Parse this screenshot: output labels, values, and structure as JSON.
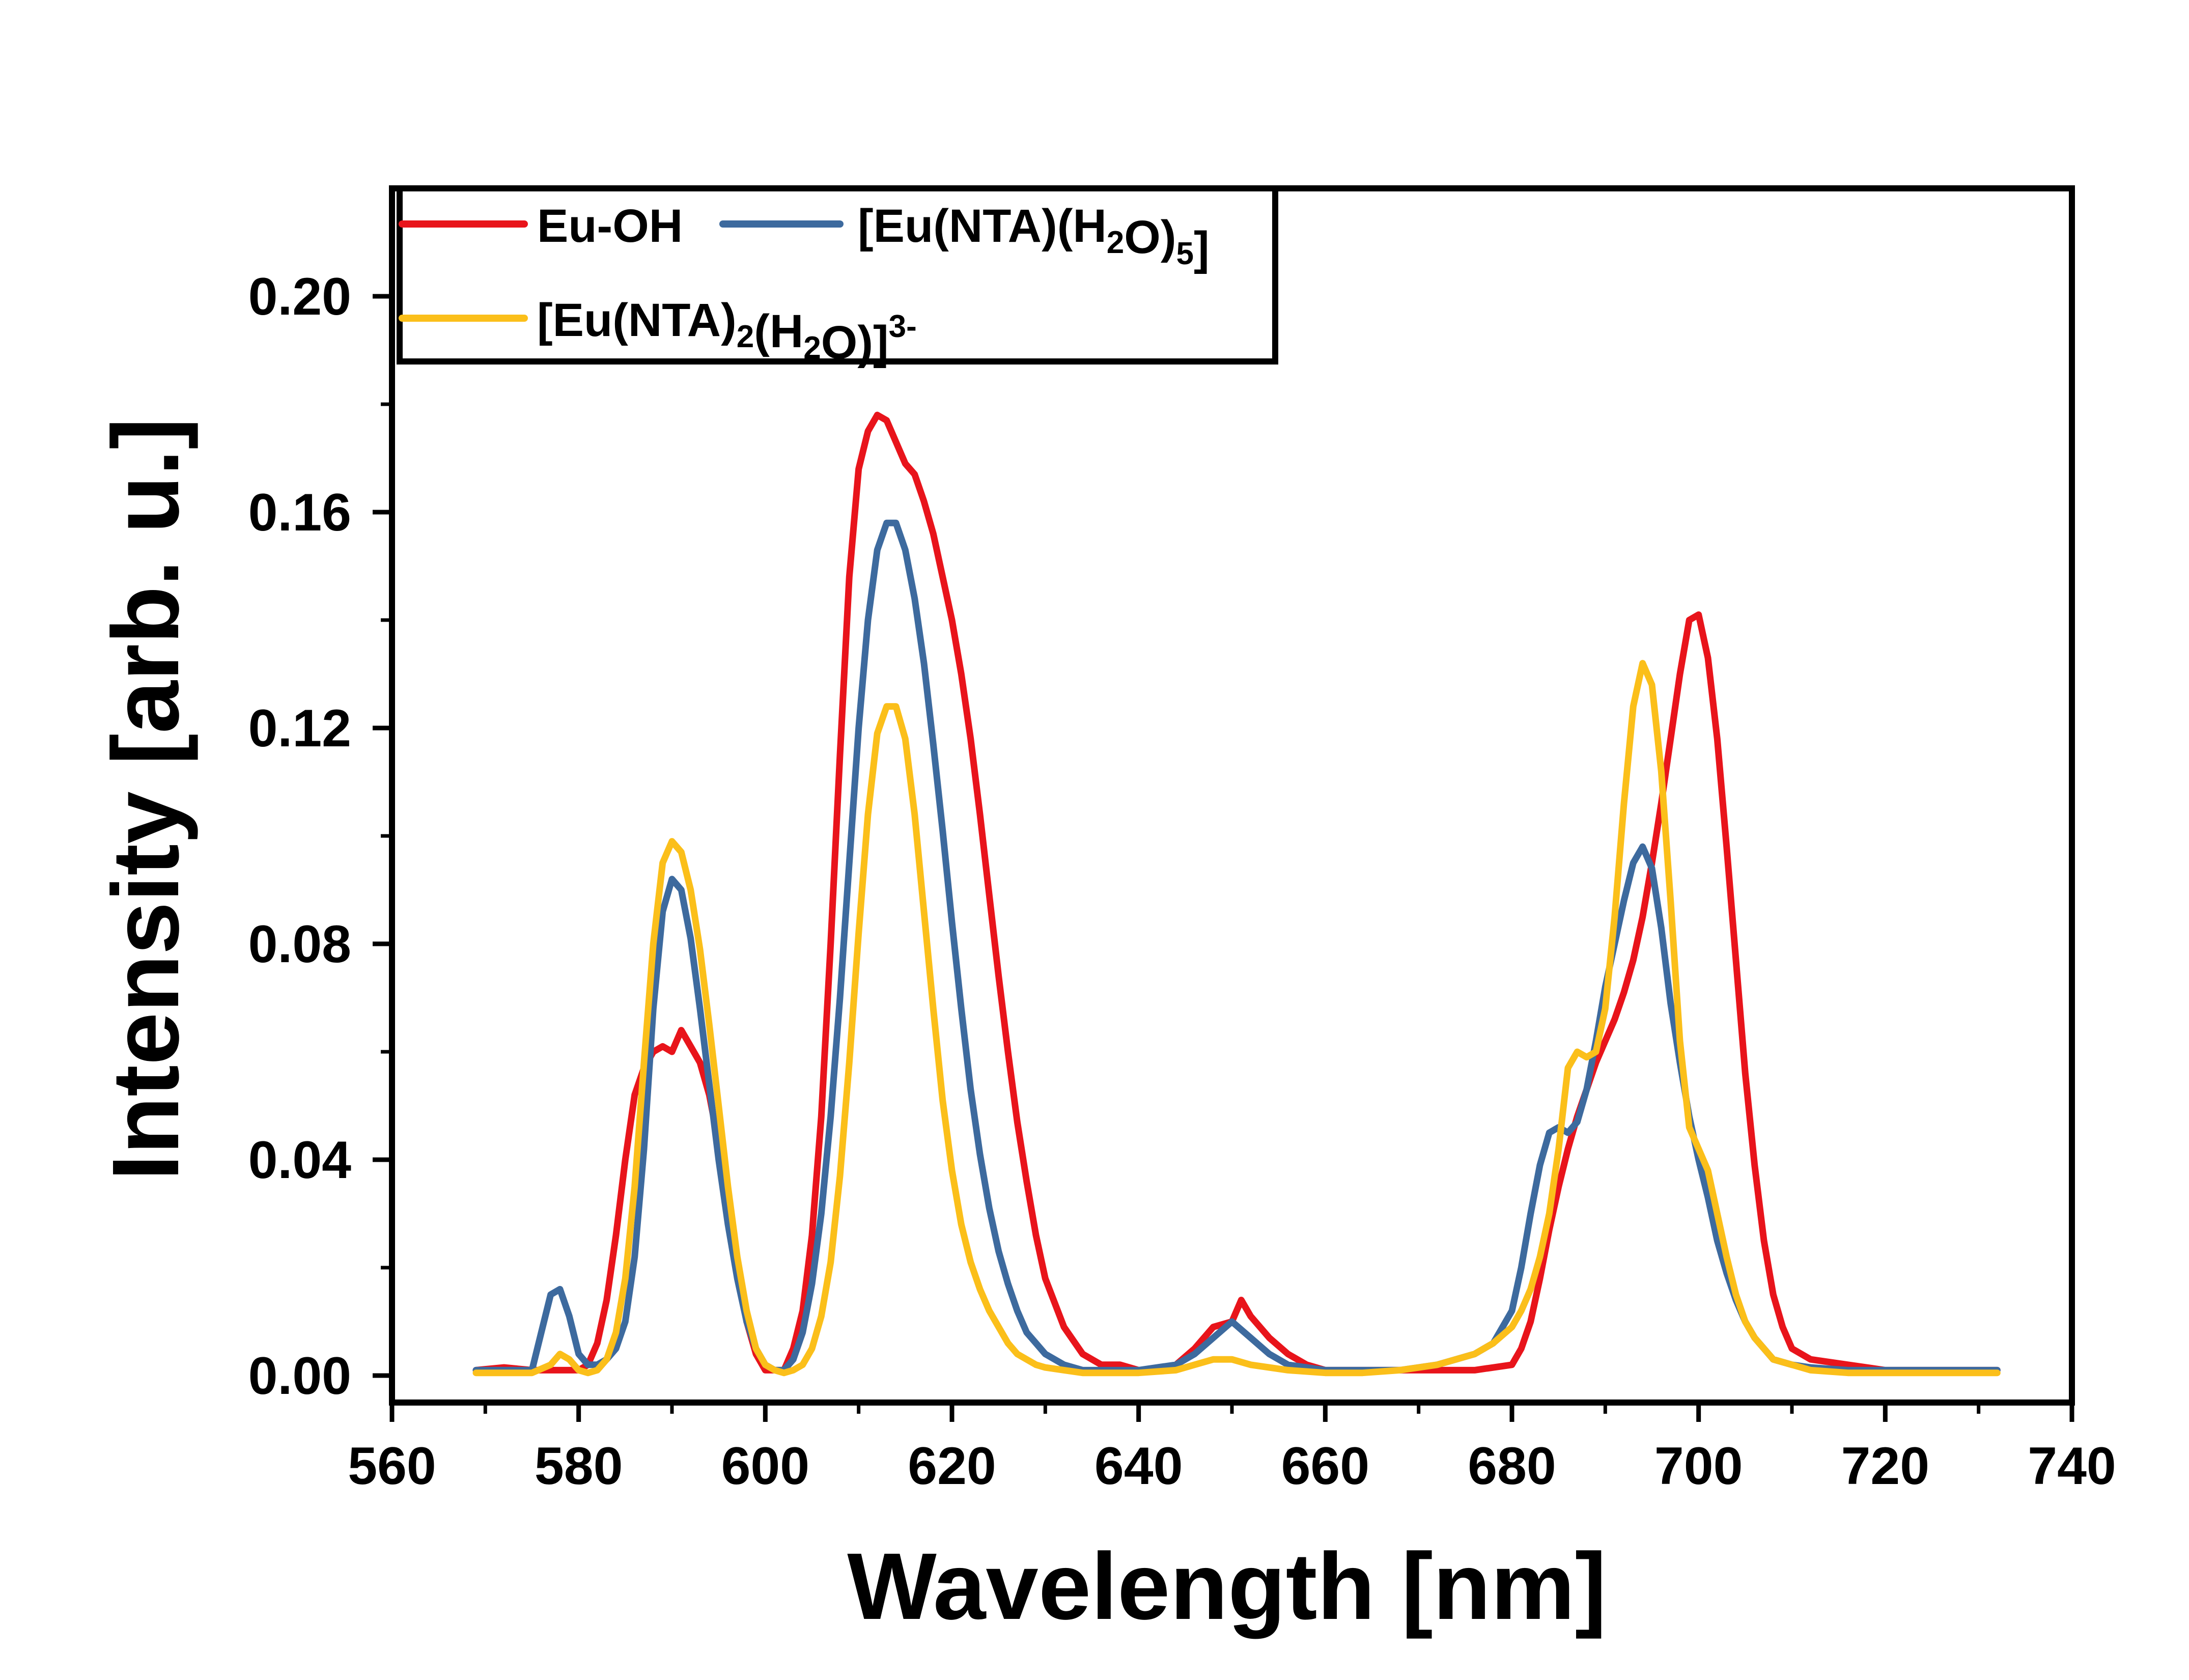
{
  "chart_data": {
    "type": "line",
    "title": "",
    "xlabel": "Wavelength [nm]",
    "ylabel": "Intensity [arb. u.]",
    "xlim": [
      560,
      740
    ],
    "ylim": [
      -0.005,
      0.22
    ],
    "x_ticks": [
      560,
      580,
      600,
      620,
      640,
      660,
      680,
      700,
      720,
      740
    ],
    "x_tick_labels": [
      "560",
      "580",
      "600",
      "620",
      "640",
      "660",
      "680",
      "700",
      "720",
      "740"
    ],
    "y_ticks": [
      0.0,
      0.04,
      0.08,
      0.12,
      0.16,
      0.2
    ],
    "y_tick_labels": [
      "0.00",
      "0.04",
      "0.08",
      "0.12",
      "0.16",
      "0.20"
    ],
    "grid": false,
    "legend_position": "top-left",
    "series": [
      {
        "name": "Eu-OH",
        "legend_parts": [
          {
            "t": "Eu-OH",
            "s": "base"
          }
        ],
        "color": "#e8141b",
        "x": [
          569,
          572,
          575,
          578,
          580,
          581,
          582,
          583,
          584,
          585,
          586,
          587,
          588,
          589,
          590,
          591,
          592,
          593,
          594,
          595,
          596,
          597,
          598,
          599,
          600,
          601,
          602,
          603,
          604,
          605,
          606,
          607,
          608,
          609,
          610,
          611,
          612,
          613,
          614,
          615,
          616,
          617,
          618,
          619,
          620,
          621,
          622,
          623,
          624,
          625,
          626,
          627,
          628,
          629,
          630,
          632,
          634,
          636,
          638,
          640,
          642,
          644,
          646,
          648,
          650,
          651,
          652,
          654,
          656,
          658,
          660,
          664,
          668,
          672,
          676,
          680,
          681,
          682,
          683,
          684,
          685,
          686,
          687,
          688,
          689,
          690,
          691,
          692,
          693,
          694,
          695,
          696,
          697,
          698,
          699,
          700,
          701,
          702,
          703,
          704,
          705,
          706,
          707,
          708,
          709,
          710,
          712,
          716,
          720,
          724,
          728,
          732
        ],
        "y": [
          0.001,
          0.0015,
          0.001,
          0.001,
          0.001,
          0.002,
          0.006,
          0.014,
          0.026,
          0.04,
          0.052,
          0.057,
          0.06,
          0.061,
          0.06,
          0.064,
          0.061,
          0.058,
          0.052,
          0.043,
          0.032,
          0.02,
          0.01,
          0.004,
          0.001,
          0.001,
          0.001,
          0.005,
          0.012,
          0.026,
          0.048,
          0.08,
          0.115,
          0.148,
          0.168,
          0.175,
          0.178,
          0.177,
          0.173,
          0.169,
          0.167,
          0.162,
          0.156,
          0.148,
          0.14,
          0.13,
          0.118,
          0.104,
          0.089,
          0.074,
          0.06,
          0.047,
          0.036,
          0.026,
          0.018,
          0.009,
          0.004,
          0.002,
          0.002,
          0.001,
          0.001,
          0.002,
          0.005,
          0.009,
          0.01,
          0.014,
          0.011,
          0.007,
          0.004,
          0.002,
          0.001,
          0.001,
          0.001,
          0.001,
          0.001,
          0.002,
          0.005,
          0.01,
          0.018,
          0.027,
          0.035,
          0.042,
          0.048,
          0.053,
          0.058,
          0.062,
          0.066,
          0.071,
          0.077,
          0.085,
          0.095,
          0.106,
          0.118,
          0.13,
          0.14,
          0.141,
          0.133,
          0.118,
          0.098,
          0.077,
          0.056,
          0.039,
          0.025,
          0.015,
          0.009,
          0.005,
          0.003,
          0.002,
          0.001,
          0.001,
          0.001,
          0.001
        ]
      },
      {
        "name": "[Eu(NTA)(H2O)5]",
        "legend_parts": [
          {
            "t": "[Eu(NTA)(H",
            "s": "base"
          },
          {
            "t": "2",
            "s": "sub"
          },
          {
            "t": "O)",
            "s": "base"
          },
          {
            "t": "5",
            "s": "sub"
          },
          {
            "t": "]",
            "s": "base"
          }
        ],
        "color": "#3d6a9e",
        "x": [
          569,
          572,
          575,
          576,
          577,
          578,
          579,
          580,
          581,
          582,
          583,
          584,
          585,
          586,
          587,
          588,
          589,
          590,
          591,
          592,
          593,
          594,
          595,
          596,
          597,
          598,
          599,
          600,
          601,
          602,
          603,
          604,
          605,
          606,
          607,
          608,
          609,
          610,
          611,
          612,
          613,
          614,
          615,
          616,
          617,
          618,
          619,
          620,
          621,
          622,
          623,
          624,
          625,
          626,
          627,
          628,
          629,
          630,
          632,
          634,
          636,
          638,
          640,
          644,
          646,
          648,
          650,
          652,
          654,
          656,
          660,
          664,
          668,
          672,
          676,
          678,
          680,
          681,
          682,
          683,
          684,
          685,
          686,
          687,
          688,
          689,
          690,
          691,
          692,
          693,
          694,
          695,
          696,
          697,
          698,
          699,
          700,
          701,
          702,
          703,
          704,
          705,
          706,
          707,
          708,
          710,
          712,
          716,
          720,
          724,
          728,
          732
        ],
        "y": [
          0.001,
          0.001,
          0.001,
          0.008,
          0.015,
          0.016,
          0.011,
          0.004,
          0.002,
          0.002,
          0.003,
          0.005,
          0.01,
          0.022,
          0.042,
          0.068,
          0.086,
          0.092,
          0.09,
          0.081,
          0.068,
          0.054,
          0.04,
          0.028,
          0.018,
          0.01,
          0.005,
          0.002,
          0.001,
          0.001,
          0.003,
          0.008,
          0.017,
          0.03,
          0.048,
          0.07,
          0.095,
          0.12,
          0.14,
          0.153,
          0.158,
          0.158,
          0.153,
          0.144,
          0.132,
          0.117,
          0.101,
          0.084,
          0.068,
          0.053,
          0.041,
          0.031,
          0.023,
          0.017,
          0.012,
          0.008,
          0.006,
          0.004,
          0.002,
          0.001,
          0.001,
          0.001,
          0.001,
          0.002,
          0.004,
          0.007,
          0.01,
          0.007,
          0.004,
          0.002,
          0.001,
          0.001,
          0.001,
          0.002,
          0.004,
          0.006,
          0.012,
          0.02,
          0.03,
          0.039,
          0.045,
          0.046,
          0.045,
          0.047,
          0.053,
          0.062,
          0.072,
          0.08,
          0.088,
          0.095,
          0.098,
          0.094,
          0.083,
          0.069,
          0.058,
          0.048,
          0.04,
          0.033,
          0.025,
          0.019,
          0.014,
          0.01,
          0.007,
          0.005,
          0.003,
          0.002,
          0.0015,
          0.001,
          0.001,
          0.001,
          0.001,
          0.001
        ]
      },
      {
        "name": "[Eu(NTA)2(H2O)]3-",
        "legend_parts": [
          {
            "t": "[Eu(NTA)",
            "s": "base"
          },
          {
            "t": "2",
            "s": "sub"
          },
          {
            "t": "(H",
            "s": "base"
          },
          {
            "t": "2",
            "s": "sub"
          },
          {
            "t": "O)]",
            "s": "base"
          },
          {
            "t": "3-",
            "s": "sup"
          }
        ],
        "color": "#fbbf1a",
        "x": [
          569,
          572,
          575,
          577,
          578,
          579,
          580,
          581,
          582,
          583,
          584,
          585,
          586,
          587,
          588,
          589,
          590,
          591,
          592,
          593,
          594,
          595,
          596,
          597,
          598,
          599,
          600,
          601,
          602,
          603,
          604,
          605,
          606,
          607,
          608,
          609,
          610,
          611,
          612,
          613,
          614,
          615,
          616,
          617,
          618,
          619,
          620,
          621,
          622,
          623,
          624,
          625,
          626,
          627,
          628,
          629,
          630,
          632,
          634,
          636,
          640,
          644,
          646,
          648,
          650,
          652,
          656,
          660,
          664,
          668,
          672,
          676,
          678,
          680,
          681,
          682,
          683,
          684,
          685,
          686,
          687,
          688,
          689,
          690,
          691,
          692,
          693,
          694,
          695,
          696,
          697,
          698,
          699,
          700,
          701,
          702,
          703,
          704,
          705,
          706,
          707,
          708,
          710,
          712,
          716,
          720,
          724,
          728,
          732
        ],
        "y": [
          0.0005,
          0.0005,
          0.0005,
          0.002,
          0.004,
          0.003,
          0.001,
          0.0005,
          0.001,
          0.003,
          0.008,
          0.018,
          0.035,
          0.058,
          0.08,
          0.095,
          0.099,
          0.097,
          0.09,
          0.079,
          0.065,
          0.05,
          0.035,
          0.022,
          0.012,
          0.005,
          0.002,
          0.001,
          0.0005,
          0.001,
          0.002,
          0.005,
          0.011,
          0.021,
          0.037,
          0.058,
          0.082,
          0.104,
          0.119,
          0.124,
          0.124,
          0.118,
          0.104,
          0.086,
          0.068,
          0.051,
          0.038,
          0.028,
          0.021,
          0.016,
          0.012,
          0.009,
          0.006,
          0.004,
          0.003,
          0.002,
          0.0015,
          0.001,
          0.0005,
          0.0005,
          0.0005,
          0.001,
          0.002,
          0.003,
          0.003,
          0.002,
          0.001,
          0.0005,
          0.0005,
          0.001,
          0.002,
          0.004,
          0.006,
          0.009,
          0.012,
          0.016,
          0.022,
          0.03,
          0.042,
          0.057,
          0.06,
          0.059,
          0.06,
          0.068,
          0.085,
          0.106,
          0.124,
          0.132,
          0.128,
          0.112,
          0.088,
          0.062,
          0.046,
          0.042,
          0.038,
          0.03,
          0.022,
          0.015,
          0.01,
          0.007,
          0.005,
          0.003,
          0.002,
          0.001,
          0.0005,
          0.0005,
          0.0005,
          0.0005,
          0.0005
        ]
      }
    ]
  }
}
